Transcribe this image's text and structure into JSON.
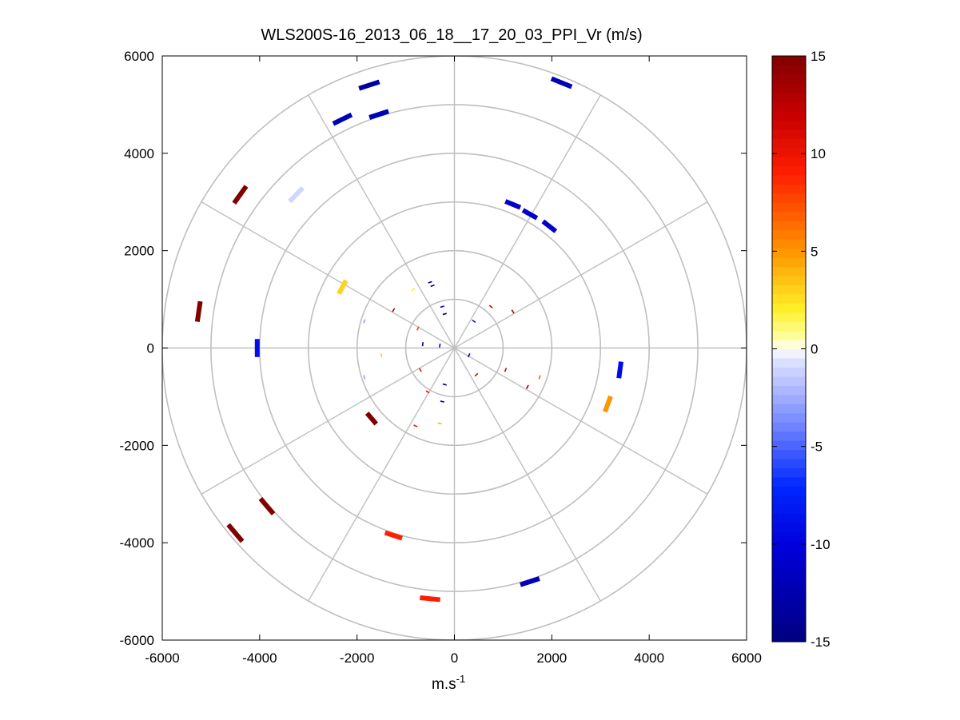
{
  "chart_data": {
    "type": "scatter",
    "subtype": "polar-ppi",
    "title": "WLS200S-16_2013_06_18__17_20_03_PPI_Vr (m/s)",
    "xlabel_base": "m.s",
    "xlabel_sup": "-1",
    "ylabel": "",
    "xlim": [
      -6000,
      6000
    ],
    "ylim": [
      -6000,
      6000
    ],
    "x_ticks": [
      "-6000",
      "-4000",
      "-2000",
      "0",
      "2000",
      "4000",
      "6000"
    ],
    "y_ticks": [
      "6000",
      "4000",
      "2000",
      "0",
      "-2000",
      "-4000",
      "-6000"
    ],
    "range_rings": [
      1000,
      2000,
      3000,
      4000,
      5000,
      6000
    ],
    "spoke_angles_deg": [
      0,
      30,
      60,
      90,
      120,
      150,
      180,
      210,
      240,
      270,
      300,
      330
    ],
    "grid_color": "#bfbfbf",
    "colorbar": {
      "min": -15,
      "max": 15,
      "ticks": [
        "15",
        "10",
        "5",
        "0",
        "-5",
        "-10",
        "-15"
      ],
      "tick_values": [
        15,
        10,
        5,
        0,
        -5,
        -10,
        -15
      ]
    },
    "points": [
      {
        "x": 2200,
        "y": 5450,
        "v": -12
      },
      {
        "x": -1750,
        "y": 5400,
        "v": -13
      },
      {
        "x": -1550,
        "y": 4800,
        "v": -12
      },
      {
        "x": -2300,
        "y": 4700,
        "v": -12
      },
      {
        "x": -4400,
        "y": 3150,
        "v": 15
      },
      {
        "x": -3250,
        "y": 3150,
        "v": -1
      },
      {
        "x": 1200,
        "y": 2950,
        "v": -11
      },
      {
        "x": 1550,
        "y": 2750,
        "v": -11
      },
      {
        "x": 1950,
        "y": 2500,
        "v": -11
      },
      {
        "x": -5250,
        "y": 750,
        "v": 15
      },
      {
        "x": -4050,
        "y": 0,
        "v": -9
      },
      {
        "x": -2300,
        "y": 1250,
        "v": 3
      },
      {
        "x": 3400,
        "y": -450,
        "v": -9
      },
      {
        "x": 3150,
        "y": -1150,
        "v": 5
      },
      {
        "x": -1700,
        "y": -1450,
        "v": 15
      },
      {
        "x": -3850,
        "y": -3250,
        "v": 15
      },
      {
        "x": -4500,
        "y": -3800,
        "v": 15
      },
      {
        "x": -1250,
        "y": -3850,
        "v": 9
      },
      {
        "x": 1550,
        "y": -4800,
        "v": -12
      },
      {
        "x": -500,
        "y": -5150,
        "v": 9
      }
    ],
    "specks": [
      {
        "x": -500,
        "y": 1350,
        "v": -14
      },
      {
        "x": -450,
        "y": 1280,
        "v": -14
      },
      {
        "x": -850,
        "y": 1200,
        "v": 2
      },
      {
        "x": -250,
        "y": 850,
        "v": -10
      },
      {
        "x": -200,
        "y": 700,
        "v": -13
      },
      {
        "x": 750,
        "y": 850,
        "v": 12
      },
      {
        "x": 1200,
        "y": 750,
        "v": 14
      },
      {
        "x": -1250,
        "y": 780,
        "v": 14
      },
      {
        "x": 400,
        "y": 550,
        "v": -9
      },
      {
        "x": -750,
        "y": 400,
        "v": 8
      },
      {
        "x": -1850,
        "y": 550,
        "v": -3
      },
      {
        "x": -650,
        "y": 80,
        "v": -13
      },
      {
        "x": -300,
        "y": 50,
        "v": -11
      },
      {
        "x": -1500,
        "y": -150,
        "v": 3
      },
      {
        "x": -1850,
        "y": -600,
        "v": -3
      },
      {
        "x": 300,
        "y": -150,
        "v": -13
      },
      {
        "x": -700,
        "y": -450,
        "v": 10
      },
      {
        "x": 1050,
        "y": -450,
        "v": 12
      },
      {
        "x": 1750,
        "y": -600,
        "v": 7
      },
      {
        "x": 1500,
        "y": -800,
        "v": 15
      },
      {
        "x": 450,
        "y": -550,
        "v": 11
      },
      {
        "x": -550,
        "y": -900,
        "v": 10
      },
      {
        "x": -200,
        "y": -750,
        "v": -14
      },
      {
        "x": -250,
        "y": -1100,
        "v": -12
      },
      {
        "x": -800,
        "y": -1600,
        "v": 10
      },
      {
        "x": -300,
        "y": -1550,
        "v": 4
      }
    ]
  }
}
